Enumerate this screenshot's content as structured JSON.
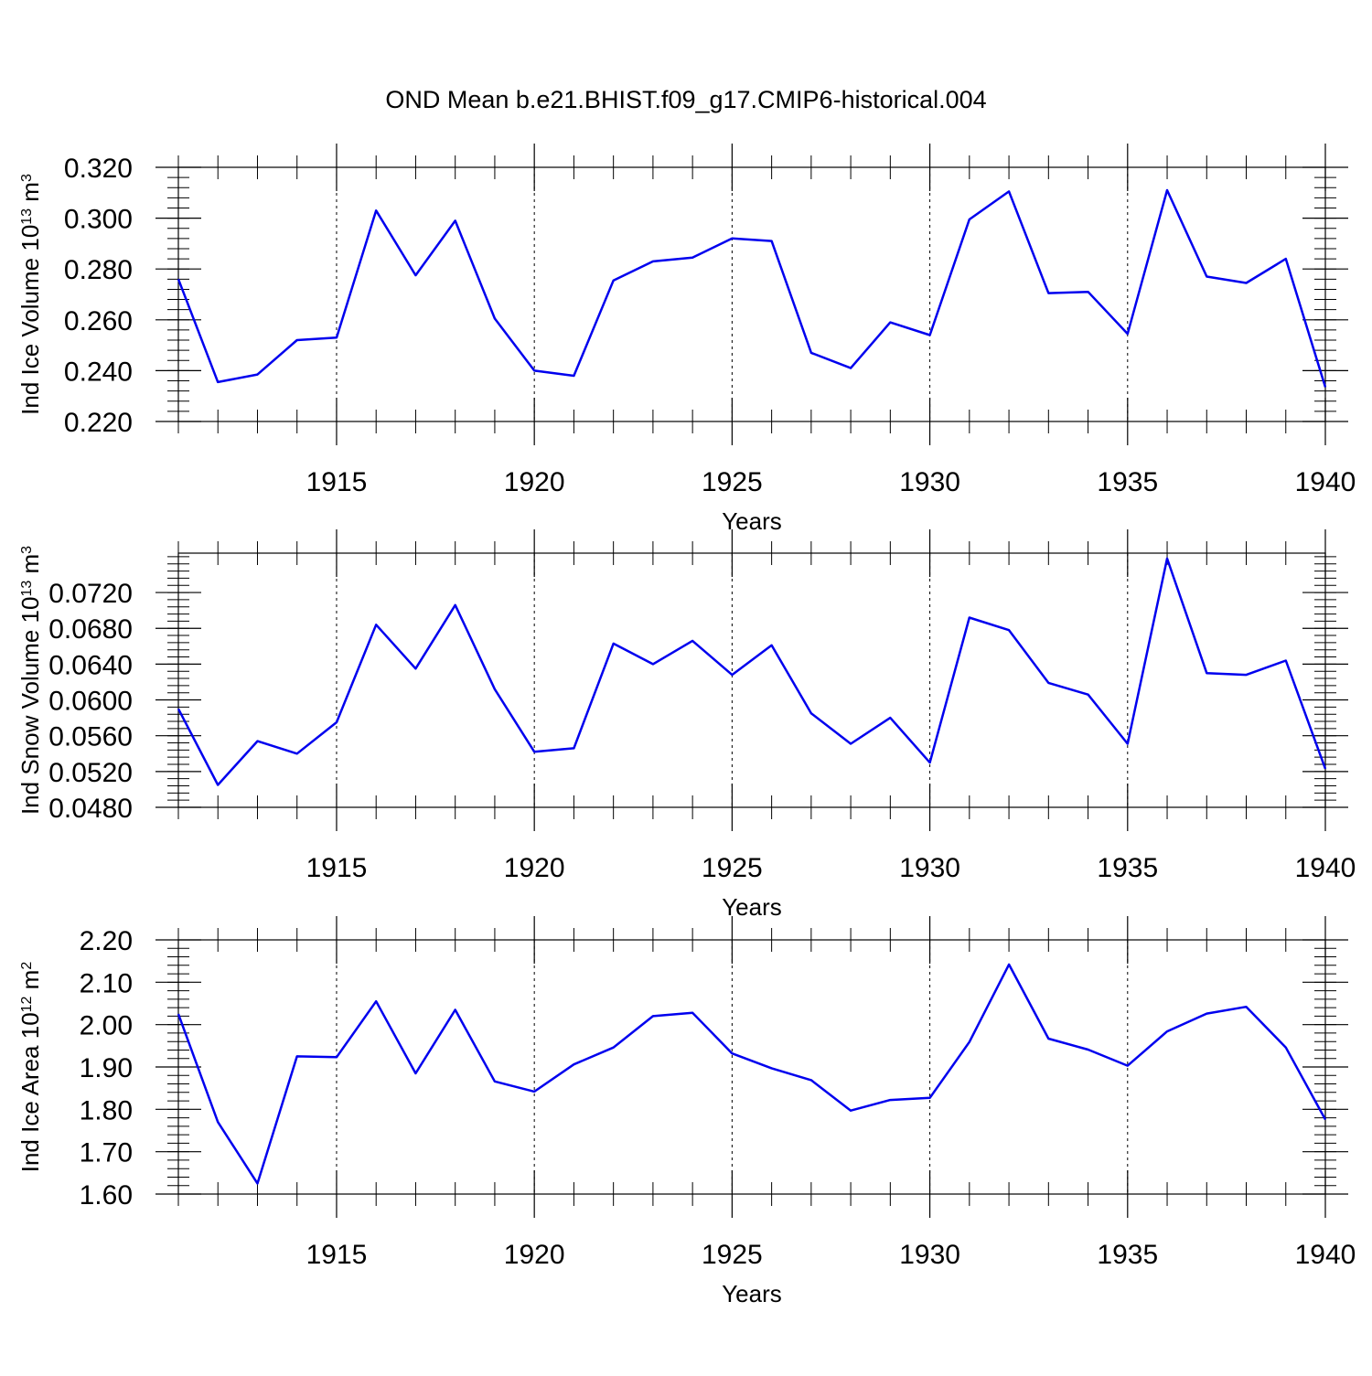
{
  "title": "OND Mean b.e21.BHIST.f09_g17.CMIP6-historical.004",
  "colors": {
    "line": "#0000ee",
    "axis": "#000000",
    "background": "#ffffff"
  },
  "chart_data": [
    {
      "type": "line",
      "name": "ice-volume",
      "xlabel": "Years",
      "ylabel_main": "Ind Ice Volume 10",
      "ylabel_exp": "13",
      "ylabel_unit": " m",
      "ylabel_unit_exp": "3",
      "xlim": [
        1911,
        1940
      ],
      "ylim": [
        0.22,
        0.32
      ],
      "x_ticks": [
        1915,
        1920,
        1925,
        1930,
        1935,
        1940
      ],
      "x_tick_labels": [
        "1915",
        "1920",
        "1925",
        "1930",
        "1935",
        "1940"
      ],
      "y_ticks": [
        0.22,
        0.24,
        0.26,
        0.28,
        0.3,
        0.32
      ],
      "y_tick_labels": [
        "0.220",
        "0.240",
        "0.260",
        "0.280",
        "0.300",
        "0.320"
      ],
      "y_minor_step": 0.004,
      "grid_x": true,
      "x": [
        1911,
        1912,
        1913,
        1914,
        1915,
        1916,
        1917,
        1918,
        1919,
        1920,
        1921,
        1922,
        1923,
        1924,
        1925,
        1926,
        1927,
        1928,
        1929,
        1930,
        1931,
        1932,
        1933,
        1934,
        1935,
        1936,
        1937,
        1938,
        1939,
        1940
      ],
      "values": [
        0.276,
        0.2355,
        0.2385,
        0.252,
        0.253,
        0.303,
        0.2775,
        0.299,
        0.2605,
        0.24,
        0.238,
        0.2755,
        0.283,
        0.2845,
        0.292,
        0.291,
        0.247,
        0.241,
        0.259,
        0.254,
        0.2995,
        0.3105,
        0.2705,
        0.271,
        0.2545,
        0.311,
        0.277,
        0.2745,
        0.284,
        0.2335
      ]
    },
    {
      "type": "line",
      "name": "snow-volume",
      "xlabel": "Years",
      "ylabel_main": "Ind Snow Volume 10",
      "ylabel_exp": "13",
      "ylabel_unit": " m",
      "ylabel_unit_exp": "3",
      "xlim": [
        1911,
        1940
      ],
      "ylim": [
        0.048,
        0.0764
      ],
      "x_ticks": [
        1915,
        1920,
        1925,
        1930,
        1935,
        1940
      ],
      "x_tick_labels": [
        "1915",
        "1920",
        "1925",
        "1930",
        "1935",
        "1940"
      ],
      "y_ticks": [
        0.048,
        0.052,
        0.056,
        0.06,
        0.064,
        0.068,
        0.072
      ],
      "y_tick_labels": [
        "0.0480",
        "0.0520",
        "0.0560",
        "0.0600",
        "0.0640",
        "0.0680",
        "0.0720"
      ],
      "y_minor_step": 0.0008,
      "grid_x": true,
      "x": [
        1911,
        1912,
        1913,
        1914,
        1915,
        1916,
        1917,
        1918,
        1919,
        1920,
        1921,
        1922,
        1923,
        1924,
        1925,
        1926,
        1927,
        1928,
        1929,
        1930,
        1931,
        1932,
        1933,
        1934,
        1935,
        1936,
        1937,
        1938,
        1939,
        1940
      ],
      "values": [
        0.059,
        0.0505,
        0.0554,
        0.054,
        0.0575,
        0.0684,
        0.0635,
        0.0706,
        0.0612,
        0.0542,
        0.0546,
        0.0663,
        0.064,
        0.0666,
        0.0628,
        0.0661,
        0.0585,
        0.0551,
        0.058,
        0.053,
        0.0692,
        0.0678,
        0.0619,
        0.0606,
        0.0551,
        0.0758,
        0.063,
        0.0628,
        0.0644,
        0.0523
      ]
    },
    {
      "type": "line",
      "name": "ice-area",
      "xlabel": "Years",
      "ylabel_main": "Ind Ice Area 10",
      "ylabel_exp": "12",
      "ylabel_unit": " m",
      "ylabel_unit_exp": "2",
      "xlim": [
        1911,
        1940
      ],
      "ylim": [
        1.6,
        2.2
      ],
      "x_ticks": [
        1915,
        1920,
        1925,
        1930,
        1935,
        1940
      ],
      "x_tick_labels": [
        "1915",
        "1920",
        "1925",
        "1930",
        "1935",
        "1940"
      ],
      "y_ticks": [
        1.6,
        1.7,
        1.8,
        1.9,
        2.0,
        2.1,
        2.2
      ],
      "y_tick_labels": [
        "1.60",
        "1.70",
        "1.80",
        "1.90",
        "2.00",
        "2.10",
        "2.20"
      ],
      "y_minor_step": 0.02,
      "grid_x": true,
      "x": [
        1911,
        1912,
        1913,
        1914,
        1915,
        1916,
        1917,
        1918,
        1919,
        1920,
        1921,
        1922,
        1923,
        1924,
        1925,
        1926,
        1927,
        1928,
        1929,
        1930,
        1931,
        1932,
        1933,
        1934,
        1935,
        1936,
        1937,
        1938,
        1939,
        1940
      ],
      "values": [
        2.025,
        1.77,
        1.625,
        1.925,
        1.923,
        2.055,
        1.885,
        2.035,
        1.866,
        1.842,
        1.906,
        1.946,
        2.02,
        2.028,
        1.932,
        1.897,
        1.869,
        1.797,
        1.822,
        1.827,
        1.959,
        2.142,
        1.967,
        1.941,
        1.903,
        1.984,
        2.026,
        2.042,
        1.946,
        1.776
      ]
    }
  ]
}
